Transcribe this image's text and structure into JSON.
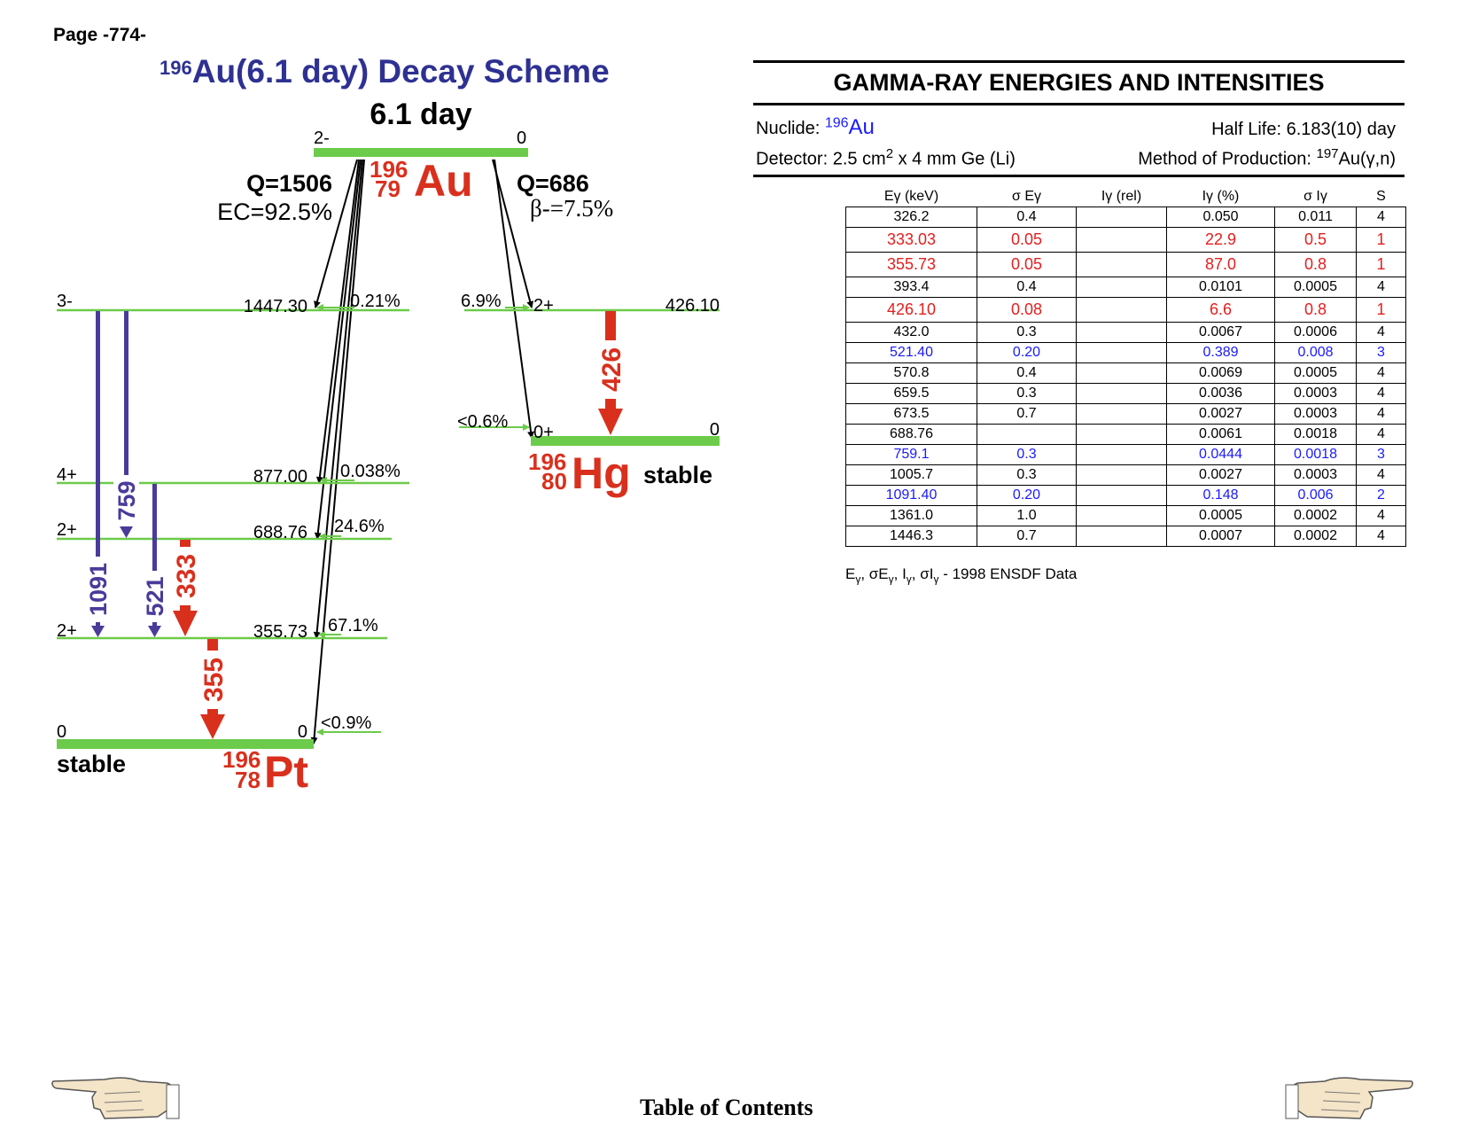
{
  "page": {
    "number": "Page -774-",
    "toc_link": "Table of Contents"
  },
  "scheme": {
    "title_sup": "196",
    "title_main": "Au(6.1 day) Decay Scheme",
    "parent": {
      "half_life": "6.1 day",
      "spin_left": "2-",
      "spin_right": "0",
      "mass": "196",
      "z": "79",
      "symbol": "Au"
    },
    "ec_branch": {
      "q": "Q=1506",
      "fraction": "EC=92.5%"
    },
    "beta_branch": {
      "q": "Q=686",
      "fraction": "β-=7.5%"
    },
    "pt_levels": [
      {
        "spin": "3-",
        "energy": "1447.30",
        "feed": "0.21%"
      },
      {
        "spin": "4+",
        "energy": "877.00",
        "feed": "0.038%"
      },
      {
        "spin": "2+",
        "energy": "688.76",
        "feed": "24.6%"
      },
      {
        "spin": "2+",
        "energy": "355.73",
        "feed": "67.1%"
      },
      {
        "spin": "0",
        "energy": "0",
        "feed": "<0.9%"
      }
    ],
    "pt_daughter": {
      "mass": "196",
      "z": "78",
      "symbol": "Pt",
      "stable": "stable"
    },
    "hg_levels": [
      {
        "spin": "2+",
        "energy": "426.10",
        "feed": "6.9%"
      },
      {
        "spin": "0+",
        "energy": "0",
        "feed": "<0.6%"
      }
    ],
    "hg_daughter": {
      "mass": "196",
      "z": "80",
      "symbol": "Hg",
      "stable": "stable"
    },
    "gammas": {
      "g1091": "1091",
      "g759": "759",
      "g521": "521",
      "g333": "333",
      "g355": "355",
      "g426": "426"
    },
    "colors": {
      "level": "#6ccb4a",
      "weak_gamma": "#4a3a9a",
      "strong_gamma": "#d9301e",
      "title": "#2e3192"
    }
  },
  "gamma_panel": {
    "title": "GAMMA-RAY ENERGIES AND INTENSITIES",
    "nuclide_label": "Nuclide: ",
    "nuclide_mass": "196",
    "nuclide_symbol": "Au",
    "half_life": "Half Life: 6.183(10) day",
    "detector_prefix": "Detector: 2.5 cm",
    "detector_sup": "2",
    "detector_suffix": " x 4 mm Ge (Li)",
    "method_prefix": "Method of Production: ",
    "method_sup": "197",
    "method_suffix": "Au(γ,n)",
    "columns": [
      "Eγ (keV)",
      "σ Eγ",
      "Iγ (rel)",
      "Iγ (%)",
      "σ Iγ",
      "S"
    ],
    "rows": [
      {
        "e": "326.2",
        "se": "0.4",
        "irel": "",
        "ip": "0.050",
        "si": "0.011",
        "s": "4",
        "style": ""
      },
      {
        "e": "333.03",
        "se": "0.05",
        "irel": "",
        "ip": "22.9",
        "si": "0.5",
        "s": "1",
        "style": "red"
      },
      {
        "e": "355.73",
        "se": "0.05",
        "irel": "",
        "ip": "87.0",
        "si": "0.8",
        "s": "1",
        "style": "red"
      },
      {
        "e": "393.4",
        "se": "0.4",
        "irel": "",
        "ip": "0.0101",
        "si": "0.0005",
        "s": "4",
        "style": ""
      },
      {
        "e": "426.10",
        "se": "0.08",
        "irel": "",
        "ip": "6.6",
        "si": "0.8",
        "s": "1",
        "style": "red"
      },
      {
        "e": "432.0",
        "se": "0.3",
        "irel": "",
        "ip": "0.0067",
        "si": "0.0006",
        "s": "4",
        "style": ""
      },
      {
        "e": "521.40",
        "se": "0.20",
        "irel": "",
        "ip": "0.389",
        "si": "0.008",
        "s": "3",
        "style": "blue"
      },
      {
        "e": "570.8",
        "se": "0.4",
        "irel": "",
        "ip": "0.0069",
        "si": "0.0005",
        "s": "4",
        "style": ""
      },
      {
        "e": "659.5",
        "se": "0.3",
        "irel": "",
        "ip": "0.0036",
        "si": "0.0003",
        "s": "4",
        "style": ""
      },
      {
        "e": "673.5",
        "se": "0.7",
        "irel": "",
        "ip": "0.0027",
        "si": "0.0003",
        "s": "4",
        "style": ""
      },
      {
        "e": "688.76",
        "se": "",
        "irel": "",
        "ip": "0.0061",
        "si": "0.0018",
        "s": "4",
        "style": ""
      },
      {
        "e": "759.1",
        "se": "0.3",
        "irel": "",
        "ip": "0.0444",
        "si": "0.0018",
        "s": "3",
        "style": "blue"
      },
      {
        "e": "1005.7",
        "se": "0.3",
        "irel": "",
        "ip": "0.0027",
        "si": "0.0003",
        "s": "4",
        "style": ""
      },
      {
        "e": "1091.40",
        "se": "0.20",
        "irel": "",
        "ip": "0.148",
        "si": "0.006",
        "s": "2",
        "style": "blue"
      },
      {
        "e": "1361.0",
        "se": "1.0",
        "irel": "",
        "ip": "0.0005",
        "si": "0.0002",
        "s": "4",
        "style": ""
      },
      {
        "e": "1446.3",
        "se": "0.7",
        "irel": "",
        "ip": "0.0007",
        "si": "0.0002",
        "s": "4",
        "style": ""
      }
    ],
    "footnote_data": "1998 ENSDF Data"
  }
}
